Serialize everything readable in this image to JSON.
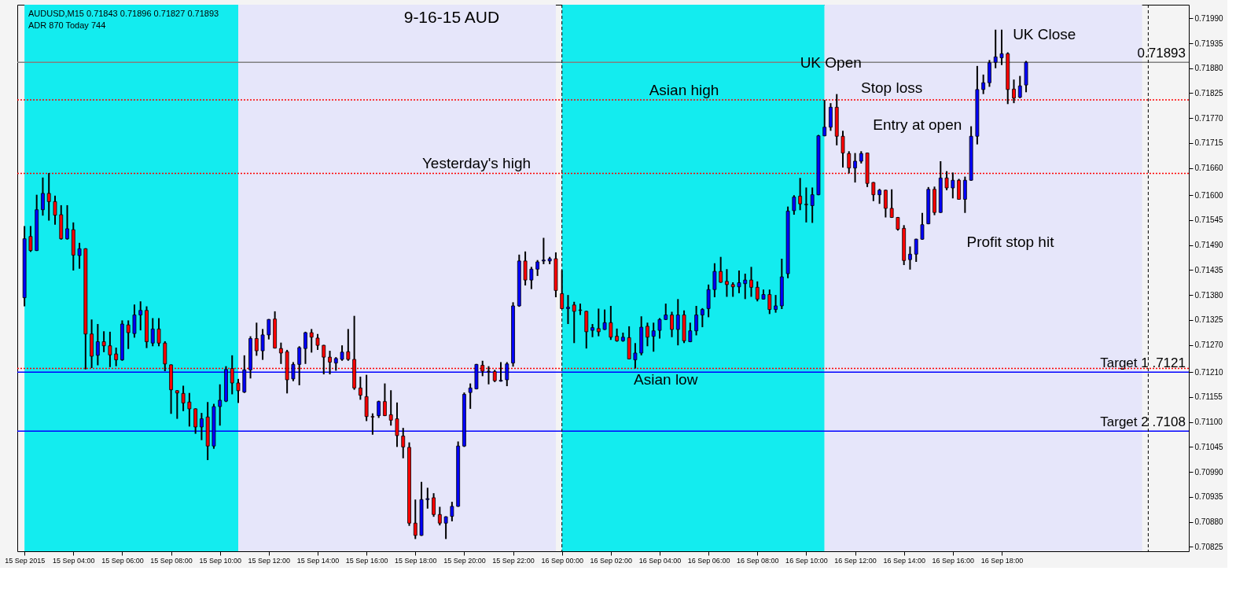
{
  "chart_data": {
    "type": "candlestick",
    "title": "9-16-15  AUD",
    "annotations": [
      "AUDUSD,M15  0.71843 0.71896 0.71827 0.71893",
      "ADR 870  Today 744",
      {
        "text": "Asian high",
        "x": "2015-09-16T05:00",
        "y": 0.7181
      },
      {
        "text": "Yesterday's high",
        "x": "2015-09-15T20:30",
        "y": 0.71648
      },
      {
        "text": "Asian low",
        "x": "2015-09-16T04:15",
        "y": 0.71218
      },
      {
        "text": "UK Open",
        "x": "2015-09-16T10:45",
        "y": 0.7181
      },
      {
        "text": "Stop loss",
        "x": "2015-09-16T13:30",
        "y": 0.7181
      },
      {
        "text": "Entry at open",
        "x": "2015-09-16T11:45",
        "y": 0.71692
      },
      {
        "text": "Profit stop hit",
        "x": "2015-09-16T14:45",
        "y": 0.71503
      },
      {
        "text": "UK Close",
        "x": "2015-09-16T18:45",
        "y": 0.71863
      }
    ],
    "x": [
      "2015-09-15T02:00",
      "2015-09-15T02:15",
      "2015-09-15T02:30",
      "2015-09-15T02:45",
      "2015-09-15T03:00",
      "2015-09-15T03:15",
      "2015-09-15T03:30",
      "2015-09-15T03:45",
      "2015-09-15T04:00",
      "2015-09-15T04:15",
      "2015-09-15T04:30",
      "2015-09-15T04:45",
      "2015-09-15T05:00",
      "2015-09-15T05:15",
      "2015-09-15T05:30",
      "2015-09-15T05:45",
      "2015-09-15T06:00",
      "2015-09-15T06:15",
      "2015-09-15T06:30",
      "2015-09-15T06:45",
      "2015-09-15T07:00",
      "2015-09-15T07:15",
      "2015-09-15T07:30",
      "2015-09-15T07:45",
      "2015-09-15T08:00",
      "2015-09-15T08:15",
      "2015-09-15T08:30",
      "2015-09-15T08:45",
      "2015-09-15T09:00",
      "2015-09-15T09:15",
      "2015-09-15T09:30",
      "2015-09-15T09:45",
      "2015-09-15T10:00",
      "2015-09-15T10:15",
      "2015-09-15T10:30",
      "2015-09-15T10:45",
      "2015-09-15T11:00",
      "2015-09-15T11:15",
      "2015-09-15T11:30",
      "2015-09-15T11:45",
      "2015-09-15T12:00",
      "2015-09-15T12:15",
      "2015-09-15T12:30",
      "2015-09-15T12:45",
      "2015-09-15T13:00",
      "2015-09-15T13:15",
      "2015-09-15T13:30",
      "2015-09-15T13:45",
      "2015-09-15T14:00",
      "2015-09-15T14:15",
      "2015-09-15T14:30",
      "2015-09-15T14:45",
      "2015-09-15T15:00",
      "2015-09-15T15:15",
      "2015-09-15T15:30",
      "2015-09-15T15:45",
      "2015-09-15T16:00",
      "2015-09-15T16:15",
      "2015-09-15T16:30",
      "2015-09-15T16:45",
      "2015-09-15T17:00",
      "2015-09-15T17:15",
      "2015-09-15T17:30",
      "2015-09-15T17:45",
      "2015-09-15T18:00",
      "2015-09-15T18:15",
      "2015-09-15T18:30",
      "2015-09-15T18:45",
      "2015-09-15T19:00",
      "2015-09-15T19:15",
      "2015-09-15T19:30",
      "2015-09-15T19:45",
      "2015-09-15T20:00",
      "2015-09-15T20:15",
      "2015-09-15T20:30",
      "2015-09-15T20:45",
      "2015-09-15T21:00",
      "2015-09-15T21:15",
      "2015-09-15T21:30",
      "2015-09-15T21:45",
      "2015-09-15T22:00",
      "2015-09-15T22:15",
      "2015-09-15T22:30",
      "2015-09-15T22:45",
      "2015-09-15T23:00",
      "2015-09-15T23:15",
      "2015-09-15T23:30",
      "2015-09-15T23:45",
      "2015-09-16T00:00",
      "2015-09-16T00:15",
      "2015-09-16T00:30",
      "2015-09-16T00:45",
      "2015-09-16T01:00",
      "2015-09-16T01:15",
      "2015-09-16T01:30",
      "2015-09-16T01:45",
      "2015-09-16T02:00",
      "2015-09-16T02:15",
      "2015-09-16T02:30",
      "2015-09-16T02:45",
      "2015-09-16T03:00",
      "2015-09-16T03:15",
      "2015-09-16T03:30",
      "2015-09-16T03:45",
      "2015-09-16T04:00",
      "2015-09-16T04:15",
      "2015-09-16T04:30",
      "2015-09-16T04:45",
      "2015-09-16T05:00",
      "2015-09-16T05:15",
      "2015-09-16T05:30",
      "2015-09-16T05:45",
      "2015-09-16T06:00",
      "2015-09-16T06:15",
      "2015-09-16T06:30",
      "2015-09-16T06:45",
      "2015-09-16T07:00",
      "2015-09-16T07:15",
      "2015-09-16T07:30",
      "2015-09-16T07:45",
      "2015-09-16T08:00",
      "2015-09-16T08:15",
      "2015-09-16T08:30",
      "2015-09-16T08:45",
      "2015-09-16T09:00",
      "2015-09-16T09:15",
      "2015-09-16T09:30",
      "2015-09-16T09:45",
      "2015-09-16T10:00",
      "2015-09-16T10:15",
      "2015-09-16T10:30",
      "2015-09-16T10:45",
      "2015-09-16T11:00",
      "2015-09-16T11:15",
      "2015-09-16T11:30",
      "2015-09-16T11:45",
      "2015-09-16T12:00",
      "2015-09-16T12:15",
      "2015-09-16T12:30",
      "2015-09-16T12:45",
      "2015-09-16T13:00",
      "2015-09-16T13:15",
      "2015-09-16T13:30",
      "2015-09-16T13:45",
      "2015-09-16T14:00",
      "2015-09-16T14:15",
      "2015-09-16T14:30",
      "2015-09-16T14:45",
      "2015-09-16T15:00",
      "2015-09-16T15:15",
      "2015-09-16T15:30",
      "2015-09-16T15:45",
      "2015-09-16T16:00",
      "2015-09-16T16:15",
      "2015-09-16T16:30",
      "2015-09-16T16:45",
      "2015-09-16T17:00",
      "2015-09-16T17:15",
      "2015-09-16T17:30",
      "2015-09-16T17:45",
      "2015-09-16T18:00",
      "2015-09-16T18:15",
      "2015-09-16T18:30",
      "2015-09-16T18:45",
      "2015-09-16T19:00"
    ],
    "ohlc": [
      [
        0.71374,
        0.71532,
        0.71355,
        0.71504
      ],
      [
        0.71509,
        0.71532,
        0.71475,
        0.71478
      ],
      [
        0.71478,
        0.71601,
        0.71477,
        0.71568
      ],
      [
        0.71568,
        0.71639,
        0.71555,
        0.71604
      ],
      [
        0.71604,
        0.71649,
        0.71544,
        0.71586
      ],
      [
        0.71586,
        0.71599,
        0.71535,
        0.71556
      ],
      [
        0.71557,
        0.71578,
        0.71502,
        0.71504
      ],
      [
        0.71504,
        0.71578,
        0.71502,
        0.71526
      ],
      [
        0.71524,
        0.7154,
        0.71434,
        0.71468
      ],
      [
        0.71467,
        0.71495,
        0.71438,
        0.71482
      ],
      [
        0.71482,
        0.71483,
        0.71216,
        0.71294
      ],
      [
        0.71294,
        0.71326,
        0.71219,
        0.71245
      ],
      [
        0.71247,
        0.71316,
        0.71225,
        0.71277
      ],
      [
        0.71277,
        0.713,
        0.71254,
        0.71268
      ],
      [
        0.71268,
        0.71299,
        0.71221,
        0.71248
      ],
      [
        0.7125,
        0.71264,
        0.71223,
        0.71237
      ],
      [
        0.71237,
        0.71324,
        0.71235,
        0.71316
      ],
      [
        0.71314,
        0.71324,
        0.71261,
        0.71297
      ],
      [
        0.71295,
        0.71359,
        0.71286,
        0.71336
      ],
      [
        0.71336,
        0.71366,
        0.71302,
        0.71346
      ],
      [
        0.71346,
        0.71355,
        0.71263,
        0.71277
      ],
      [
        0.71274,
        0.71329,
        0.71267,
        0.71305
      ],
      [
        0.71305,
        0.71329,
        0.71267,
        0.71274
      ],
      [
        0.71274,
        0.71278,
        0.71212,
        0.71228
      ],
      [
        0.71226,
        0.71227,
        0.71118,
        0.71171
      ],
      [
        0.71169,
        0.7117,
        0.71107,
        0.71164
      ],
      [
        0.71163,
        0.7118,
        0.71124,
        0.71142
      ],
      [
        0.71144,
        0.71164,
        0.7109,
        0.71129
      ],
      [
        0.71129,
        0.7113,
        0.71074,
        0.71089
      ],
      [
        0.71089,
        0.7112,
        0.7106,
        0.71107
      ],
      [
        0.71111,
        0.71144,
        0.71016,
        0.71047
      ],
      [
        0.71047,
        0.7114,
        0.71041,
        0.71134
      ],
      [
        0.71134,
        0.71183,
        0.71092,
        0.71148
      ],
      [
        0.71146,
        0.71223,
        0.71144,
        0.71216
      ],
      [
        0.71218,
        0.71247,
        0.71161,
        0.71186
      ],
      [
        0.71186,
        0.71195,
        0.71142,
        0.71169
      ],
      [
        0.71166,
        0.71247,
        0.71164,
        0.71215
      ],
      [
        0.71215,
        0.71289,
        0.71196,
        0.71284
      ],
      [
        0.71284,
        0.71319,
        0.71246,
        0.71257
      ],
      [
        0.71257,
        0.71305,
        0.71237,
        0.71292
      ],
      [
        0.71292,
        0.71327,
        0.71282,
        0.71326
      ],
      [
        0.71327,
        0.71344,
        0.71262,
        0.71263
      ],
      [
        0.71262,
        0.71275,
        0.71228,
        0.71252
      ],
      [
        0.71255,
        0.71259,
        0.71163,
        0.71193
      ],
      [
        0.71195,
        0.71232,
        0.7119,
        0.71227
      ],
      [
        0.71227,
        0.71267,
        0.71181,
        0.71264
      ],
      [
        0.71262,
        0.71299,
        0.71228,
        0.71297
      ],
      [
        0.71297,
        0.71305,
        0.71253,
        0.71287
      ],
      [
        0.71285,
        0.71294,
        0.71259,
        0.71269
      ],
      [
        0.71269,
        0.7127,
        0.71205,
        0.71243
      ],
      [
        0.71243,
        0.71257,
        0.71205,
        0.71232
      ],
      [
        0.7123,
        0.71243,
        0.71213,
        0.7124
      ],
      [
        0.71238,
        0.71269,
        0.71235,
        0.71254
      ],
      [
        0.71255,
        0.71305,
        0.71235,
        0.71238
      ],
      [
        0.71238,
        0.71334,
        0.71171,
        0.71175
      ],
      [
        0.71175,
        0.712,
        0.71149,
        0.71159
      ],
      [
        0.71156,
        0.71204,
        0.71102,
        0.71112
      ],
      [
        0.71112,
        0.71119,
        0.71072,
        0.71111
      ],
      [
        0.71114,
        0.71147,
        0.71109,
        0.71145
      ],
      [
        0.71145,
        0.71185,
        0.71113,
        0.71114
      ],
      [
        0.71116,
        0.7117,
        0.71092,
        0.71104
      ],
      [
        0.71107,
        0.71143,
        0.71045,
        0.7107
      ],
      [
        0.71069,
        0.71087,
        0.7102,
        0.71045
      ],
      [
        0.71044,
        0.71055,
        0.70871,
        0.70877
      ],
      [
        0.70877,
        0.70929,
        0.70842,
        0.7085
      ],
      [
        0.7085,
        0.70968,
        0.70849,
        0.70929
      ],
      [
        0.70929,
        0.70955,
        0.70909,
        0.70931
      ],
      [
        0.70933,
        0.70943,
        0.70891,
        0.70896
      ],
      [
        0.70896,
        0.70913,
        0.70872,
        0.70877
      ],
      [
        0.70877,
        0.70892,
        0.70842,
        0.70891
      ],
      [
        0.70892,
        0.70924,
        0.70881,
        0.70914
      ],
      [
        0.70914,
        0.71057,
        0.70913,
        0.71047
      ],
      [
        0.71047,
        0.71165,
        0.71045,
        0.71161
      ],
      [
        0.71165,
        0.71185,
        0.71129,
        0.71175
      ],
      [
        0.71173,
        0.71228,
        0.71172,
        0.71227
      ],
      [
        0.71225,
        0.71235,
        0.71201,
        0.71212
      ],
      [
        0.71212,
        0.71223,
        0.71183,
        0.71211
      ],
      [
        0.71211,
        0.71215,
        0.71188,
        0.71191
      ],
      [
        0.7119,
        0.71232,
        0.71189,
        0.71192
      ],
      [
        0.71193,
        0.71232,
        0.71179,
        0.71228
      ],
      [
        0.7123,
        0.71364,
        0.71222,
        0.71356
      ],
      [
        0.71356,
        0.71469,
        0.71354,
        0.71455
      ],
      [
        0.71455,
        0.71476,
        0.71401,
        0.71413
      ],
      [
        0.71413,
        0.71442,
        0.71393,
        0.71437
      ],
      [
        0.71437,
        0.71457,
        0.71422,
        0.71453
      ],
      [
        0.71455,
        0.71506,
        0.71448,
        0.71457
      ],
      [
        0.71455,
        0.71464,
        0.71448,
        0.7146
      ],
      [
        0.7146,
        0.71474,
        0.71375,
        0.7139
      ],
      [
        0.71383,
        0.71435,
        0.71349,
        0.7135
      ],
      [
        0.7135,
        0.7138,
        0.71316,
        0.71353
      ],
      [
        0.71358,
        0.71365,
        0.71274,
        0.71344
      ],
      [
        0.71347,
        0.71361,
        0.71336,
        0.71346
      ],
      [
        0.71344,
        0.71345,
        0.71262,
        0.71299
      ],
      [
        0.71302,
        0.71316,
        0.71287,
        0.71308
      ],
      [
        0.71306,
        0.7135,
        0.71289,
        0.71299
      ],
      [
        0.71304,
        0.71348,
        0.71303,
        0.71319
      ],
      [
        0.71319,
        0.71356,
        0.71281,
        0.71287
      ],
      [
        0.71289,
        0.71306,
        0.71277,
        0.71279
      ],
      [
        0.71279,
        0.71297,
        0.71277,
        0.71287
      ],
      [
        0.71286,
        0.71311,
        0.71238,
        0.71239
      ],
      [
        0.71237,
        0.71274,
        0.71218,
        0.71252
      ],
      [
        0.71252,
        0.71333,
        0.71247,
        0.71309
      ],
      [
        0.71311,
        0.71319,
        0.71267,
        0.71287
      ],
      [
        0.71289,
        0.71319,
        0.71255,
        0.71301
      ],
      [
        0.71302,
        0.71329,
        0.71284,
        0.71326
      ],
      [
        0.71326,
        0.71361,
        0.71325,
        0.71336
      ],
      [
        0.71336,
        0.71343,
        0.71287,
        0.71304
      ],
      [
        0.71304,
        0.71371,
        0.71269,
        0.71336
      ],
      [
        0.71336,
        0.71346,
        0.71274,
        0.71279
      ],
      [
        0.71277,
        0.71319,
        0.71276,
        0.71301
      ],
      [
        0.71301,
        0.71356,
        0.71291,
        0.71336
      ],
      [
        0.71336,
        0.71351,
        0.71309,
        0.71348
      ],
      [
        0.7135,
        0.71403,
        0.71331,
        0.71392
      ],
      [
        0.71392,
        0.7145,
        0.71375,
        0.71432
      ],
      [
        0.71432,
        0.71464,
        0.71407,
        0.71408
      ],
      [
        0.7141,
        0.71437,
        0.71376,
        0.71403
      ],
      [
        0.71403,
        0.71408,
        0.71376,
        0.71398
      ],
      [
        0.71398,
        0.71434,
        0.71384,
        0.71407
      ],
      [
        0.71405,
        0.71427,
        0.71371,
        0.71413
      ],
      [
        0.71413,
        0.71442,
        0.71376,
        0.71397
      ],
      [
        0.71397,
        0.7141,
        0.71366,
        0.71371
      ],
      [
        0.71371,
        0.71392,
        0.7137,
        0.71381
      ],
      [
        0.71381,
        0.71392,
        0.71338,
        0.71348
      ],
      [
        0.71348,
        0.7138,
        0.71341,
        0.71356
      ],
      [
        0.71356,
        0.7146,
        0.71349,
        0.7142
      ],
      [
        0.71427,
        0.71575,
        0.71417,
        0.71565
      ],
      [
        0.71566,
        0.716,
        0.71557,
        0.71596
      ],
      [
        0.71598,
        0.71638,
        0.71567,
        0.71581
      ],
      [
        0.7158,
        0.71617,
        0.7154,
        0.71579
      ],
      [
        0.71577,
        0.71617,
        0.71539,
        0.71601
      ],
      [
        0.71601,
        0.71733,
        0.716,
        0.71731
      ],
      [
        0.71731,
        0.7181,
        0.7173,
        0.7175
      ],
      [
        0.7175,
        0.71803,
        0.71742,
        0.71794
      ],
      [
        0.71794,
        0.71823,
        0.7171,
        0.7173
      ],
      [
        0.7173,
        0.71742,
        0.71661,
        0.71693
      ],
      [
        0.71692,
        0.71697,
        0.71648,
        0.7166
      ],
      [
        0.7166,
        0.71693,
        0.71628,
        0.71675
      ],
      [
        0.71675,
        0.71697,
        0.7167,
        0.71692
      ],
      [
        0.71693,
        0.71694,
        0.71618,
        0.71626
      ],
      [
        0.71628,
        0.71629,
        0.71587,
        0.71601
      ],
      [
        0.71601,
        0.71614,
        0.71581,
        0.71611
      ],
      [
        0.71611,
        0.71612,
        0.71551,
        0.71571
      ],
      [
        0.71571,
        0.71613,
        0.7155,
        0.71551
      ],
      [
        0.71551,
        0.71552,
        0.71522,
        0.71525
      ],
      [
        0.71527,
        0.71534,
        0.71446,
        0.71456
      ],
      [
        0.71458,
        0.71487,
        0.71436,
        0.7147
      ],
      [
        0.7147,
        0.71504,
        0.71453,
        0.71503
      ],
      [
        0.71503,
        0.71561,
        0.71502,
        0.71535
      ],
      [
        0.71537,
        0.71618,
        0.71536,
        0.71613
      ],
      [
        0.71613,
        0.71619,
        0.71556,
        0.71562
      ],
      [
        0.71562,
        0.71675,
        0.71561,
        0.71638
      ],
      [
        0.71638,
        0.71653,
        0.71611,
        0.71616
      ],
      [
        0.71616,
        0.7165,
        0.71593,
        0.71633
      ],
      [
        0.71633,
        0.71636,
        0.7159,
        0.71591
      ],
      [
        0.71591,
        0.71641,
        0.71561,
        0.71633
      ],
      [
        0.71633,
        0.71752,
        0.71632,
        0.7173
      ],
      [
        0.7173,
        0.71885,
        0.71712,
        0.71833
      ],
      [
        0.71833,
        0.71866,
        0.71823,
        0.71848
      ],
      [
        0.71848,
        0.71898,
        0.71839,
        0.71892
      ],
      [
        0.71893,
        0.71965,
        0.7188,
        0.71905
      ],
      [
        0.71903,
        0.71965,
        0.71887,
        0.71912
      ],
      [
        0.71912,
        0.71915,
        0.71801,
        0.71833
      ],
      [
        0.71834,
        0.71855,
        0.71803,
        0.71814
      ],
      [
        0.71816,
        0.71863,
        0.71814,
        0.71841
      ],
      [
        0.71843,
        0.71896,
        0.71827,
        0.71893
      ]
    ],
    "colors": [
      "#0000ff",
      "#ff0000",
      "#0000ff",
      "#0000ff",
      "#ff0000",
      "#ff0000",
      "#ff0000",
      "#0000ff",
      "#ff0000",
      "#0000ff",
      "#ff0000",
      "#ff0000",
      "#0000ff",
      "#ff0000",
      "#ff0000",
      "#ff0000",
      "#0000ff",
      "#ff0000",
      "#0000ff",
      "#0000ff",
      "#ff0000",
      "#0000ff",
      "#ff0000",
      "#ff0000",
      "#ff0000",
      "#ff0000",
      "#ff0000",
      "#ff0000",
      "#ff0000",
      "#0000ff",
      "#ff0000",
      "#0000ff",
      "#0000ff",
      "#0000ff",
      "#ff0000",
      "#ff0000",
      "#0000ff",
      "#0000ff",
      "#ff0000",
      "#0000ff",
      "#0000ff",
      "#ff0000",
      "#ff0000",
      "#ff0000",
      "#0000ff",
      "#0000ff",
      "#0000ff",
      "#ff0000",
      "#ff0000",
      "#ff0000",
      "#ff0000",
      "#0000ff",
      "#0000ff",
      "#ff0000",
      "#ff0000",
      "#ff0000",
      "#ff0000",
      "#ff0000",
      "#0000ff",
      "#ff0000",
      "#ff0000",
      "#ff0000",
      "#ff0000",
      "#ff0000",
      "#ff0000",
      "#0000ff",
      "#0000ff",
      "#ff0000",
      "#ff0000",
      "#0000ff",
      "#0000ff",
      "#0000ff",
      "#0000ff",
      "#0000ff",
      "#0000ff",
      "#ff0000",
      "#ff0000",
      "#ff0000",
      "#0000ff",
      "#0000ff",
      "#0000ff",
      "#0000ff",
      "#ff0000",
      "#0000ff",
      "#0000ff",
      "#0000ff",
      "#0000ff",
      "#ff0000",
      "#ff0000",
      "#0000ff",
      "#ff0000",
      "#ff0000",
      "#ff0000",
      "#0000ff",
      "#ff0000",
      "#0000ff",
      "#ff0000",
      "#ff0000",
      "#0000ff",
      "#ff0000",
      "#0000ff",
      "#0000ff",
      "#ff0000",
      "#0000ff",
      "#0000ff",
      "#0000ff",
      "#ff0000",
      "#0000ff",
      "#ff0000",
      "#0000ff",
      "#0000ff",
      "#0000ff",
      "#0000ff",
      "#0000ff",
      "#ff0000",
      "#ff0000",
      "#ff0000",
      "#0000ff",
      "#0000ff",
      "#ff0000",
      "#ff0000",
      "#0000ff",
      "#ff0000",
      "#0000ff",
      "#0000ff",
      "#0000ff",
      "#0000ff",
      "#ff0000",
      "#ff0000",
      "#0000ff",
      "#0000ff",
      "#0000ff",
      "#0000ff",
      "#ff0000",
      "#ff0000",
      "#ff0000",
      "#0000ff",
      "#0000ff",
      "#ff0000",
      "#ff0000",
      "#0000ff",
      "#ff0000",
      "#ff0000",
      "#ff0000",
      "#ff0000",
      "#0000ff",
      "#0000ff",
      "#0000ff",
      "#0000ff",
      "#ff0000",
      "#0000ff",
      "#ff0000",
      "#0000ff",
      "#ff0000",
      "#0000ff",
      "#0000ff",
      "#0000ff",
      "#0000ff",
      "#0000ff",
      "#0000ff",
      "#0000ff",
      "#ff0000",
      "#ff0000",
      "#0000ff",
      "#0000ff"
    ],
    "xlim": [
      "2015-09-15T01:52",
      "2015-09-17T01:30"
    ],
    "xticks": [
      {
        "value": "2015-09-15T02:00",
        "label": "15 Sep 2015"
      },
      {
        "value": "2015-09-15T04:00",
        "label": "15 Sep 04:00"
      },
      {
        "value": "2015-09-15T06:00",
        "label": "15 Sep 06:00"
      },
      {
        "value": "2015-09-15T08:00",
        "label": "15 Sep 08:00"
      },
      {
        "value": "2015-09-15T10:00",
        "label": "15 Sep 10:00"
      },
      {
        "value": "2015-09-15T12:00",
        "label": "15 Sep 12:00"
      },
      {
        "value": "2015-09-15T14:00",
        "label": "15 Sep 14:00"
      },
      {
        "value": "2015-09-15T16:00",
        "label": "15 Sep 16:00"
      },
      {
        "value": "2015-09-15T18:00",
        "label": "15 Sep 18:00"
      },
      {
        "value": "2015-09-15T20:00",
        "label": "15 Sep 20:00"
      },
      {
        "value": "2015-09-15T22:00",
        "label": "15 Sep 22:00"
      },
      {
        "value": "2015-09-16T00:00",
        "label": "16 Sep 00:00"
      },
      {
        "value": "2015-09-16T02:00",
        "label": "16 Sep 02:00"
      },
      {
        "value": "2015-09-16T04:00",
        "label": "16 Sep 04:00"
      },
      {
        "value": "2015-09-16T06:00",
        "label": "16 Sep 06:00"
      },
      {
        "value": "2015-09-16T08:00",
        "label": "16 Sep 08:00"
      },
      {
        "value": "2015-09-16T10:00",
        "label": "16 Sep 10:00"
      },
      {
        "value": "2015-09-16T12:00",
        "label": "16 Sep 12:00"
      },
      {
        "value": "2015-09-16T14:00",
        "label": "16 Sep 14:00"
      },
      {
        "value": "2015-09-16T16:00",
        "label": "16 Sep 16:00"
      },
      {
        "value": "2015-09-16T18:00",
        "label": "16 Sep 18:00"
      }
    ],
    "ylim": [
      0.70815,
      0.7202
    ],
    "yticks": [
      {
        "value": 0.7199,
        "label": "0.71990"
      },
      {
        "value": 0.71935,
        "label": "0.71935"
      },
      {
        "value": 0.7188,
        "label": "0.71880"
      },
      {
        "value": 0.71825,
        "label": "0.71825"
      },
      {
        "value": 0.7177,
        "label": "0.71770"
      },
      {
        "value": 0.71715,
        "label": "0.71715"
      },
      {
        "value": 0.7166,
        "label": "0.71660"
      },
      {
        "value": 0.716,
        "label": "0.71600"
      },
      {
        "value": 0.71545,
        "label": "0.71545"
      },
      {
        "value": 0.7149,
        "label": "0.71490"
      },
      {
        "value": 0.71435,
        "label": "0.71435"
      },
      {
        "value": 0.7138,
        "label": "0.71380"
      },
      {
        "value": 0.71325,
        "label": "0.71325"
      },
      {
        "value": 0.7127,
        "label": "0.71270"
      },
      {
        "value": 0.7121,
        "label": "0.71210"
      },
      {
        "value": 0.71155,
        "label": "0.71155"
      },
      {
        "value": 0.711,
        "label": "0.71100"
      },
      {
        "value": 0.71045,
        "label": "0.71045"
      },
      {
        "value": 0.7099,
        "label": "0.70990"
      },
      {
        "value": 0.70935,
        "label": "0.70935"
      },
      {
        "value": 0.7088,
        "label": "0.70880"
      },
      {
        "value": 0.70825,
        "label": "0.70825"
      }
    ],
    "bands": [
      {
        "axis": "x",
        "from": "2015-09-15T02:00",
        "to": "2015-09-15T10:45",
        "color": "#13ecef"
      },
      {
        "axis": "x",
        "from": "2015-09-15T10:45",
        "to": "2015-09-15T23:45",
        "color": "#e6e6fa"
      },
      {
        "axis": "x",
        "from": "2015-09-16T00:00",
        "to": "2015-09-16T10:45",
        "color": "#13ecef"
      },
      {
        "axis": "x",
        "from": "2015-09-16T10:45",
        "to": "2015-09-16T23:45",
        "color": "#e6e6fa"
      }
    ],
    "ref_lines": [
      {
        "axis": "y",
        "value": 0.7121,
        "label": "Target 1  .7121",
        "color": "#0000ff",
        "line_style": "solid"
      },
      {
        "axis": "y",
        "value": 0.7108,
        "label": "Target 2  .7108",
        "color": "#0000ff",
        "line_style": "solid"
      },
      {
        "axis": "y",
        "value": 0.7181,
        "color": "#ff0000",
        "line_style": "dotted"
      },
      {
        "axis": "y",
        "value": 0.71648,
        "color": "#ff0000",
        "line_style": "dotted"
      },
      {
        "axis": "y",
        "value": 0.71218,
        "color": "#ff0000",
        "line_style": "dotted"
      },
      {
        "axis": "y",
        "value": 0.71893,
        "label": "0.71893",
        "color": "#808080",
        "line_style": "solid"
      },
      {
        "axis": "x",
        "value": "2015-09-16T00:00",
        "color": "#000000",
        "line_style": "dashed"
      },
      {
        "axis": "x",
        "value": "2015-09-17T00:00",
        "color": "#000000",
        "line_style": "dashed"
      }
    ]
  }
}
